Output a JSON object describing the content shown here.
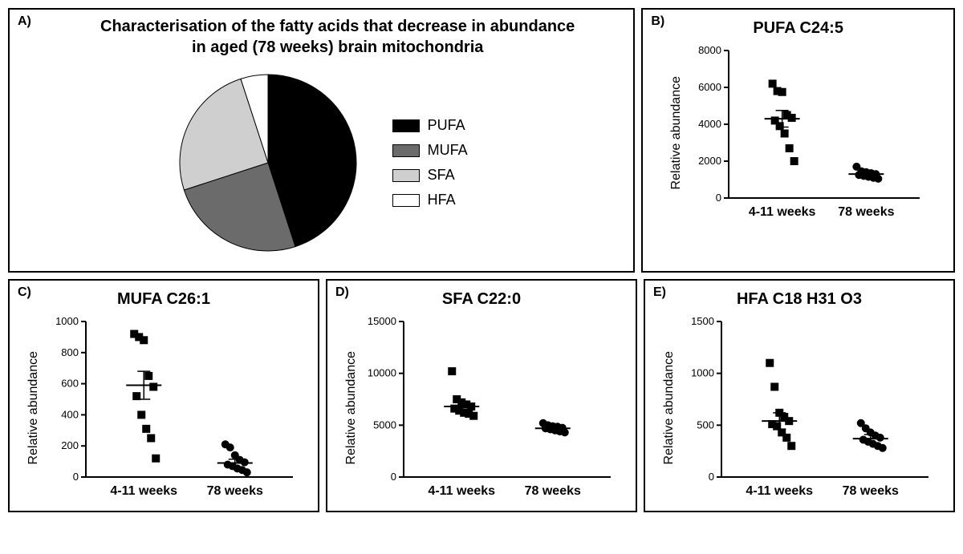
{
  "panel_a": {
    "label": "A)",
    "title_line1": "Characterisation of the fatty acids that decrease in abundance",
    "title_line2": "in aged (78 weeks) brain mitochondria",
    "pie": {
      "slices": [
        {
          "name": "PUFA",
          "value": 45,
          "color": "#000000"
        },
        {
          "name": "MUFA",
          "value": 25,
          "color": "#6b6b6b"
        },
        {
          "name": "SFA",
          "value": 25,
          "color": "#cfcfcf"
        },
        {
          "name": "HFA",
          "value": 5,
          "color": "#ffffff"
        }
      ],
      "stroke": "#000000"
    },
    "legend": [
      {
        "label": "PUFA",
        "color": "#000000"
      },
      {
        "label": "MUFA",
        "color": "#6b6b6b"
      },
      {
        "label": "SFA",
        "color": "#cfcfcf"
      },
      {
        "label": "HFA",
        "color": "#ffffff"
      }
    ]
  },
  "scatter_common": {
    "ylabel": "Relative abundance",
    "xcat_left": "4-11 weeks",
    "xcat_right": "78 weeks",
    "axis_color": "#000000",
    "tick_fontsize": 13,
    "marker_size": 5
  },
  "panel_b": {
    "label": "B)",
    "title": "PUFA C24:5",
    "ymax": 8000,
    "ytick_step": 2000,
    "group1": {
      "marker": "square",
      "mean": 4300,
      "sem": 450,
      "points": [
        6200,
        5800,
        5750,
        4500,
        4350,
        4200,
        3900,
        3500,
        2700,
        2000
      ]
    },
    "group2": {
      "marker": "circle",
      "mean": 1300,
      "sem": 120,
      "points": [
        1700,
        1450,
        1400,
        1350,
        1300,
        1250,
        1200,
        1150,
        1100,
        1050
      ]
    }
  },
  "panel_c": {
    "label": "C)",
    "title": "MUFA C26:1",
    "ymax": 1000,
    "ytick_step": 200,
    "group1": {
      "marker": "square",
      "mean": 590,
      "sem": 90,
      "points": [
        920,
        900,
        880,
        650,
        580,
        520,
        400,
        310,
        250,
        120
      ]
    },
    "group2": {
      "marker": "circle",
      "mean": 90,
      "sem": 25,
      "points": [
        210,
        190,
        140,
        110,
        95,
        80,
        70,
        55,
        45,
        30
      ]
    }
  },
  "panel_d": {
    "label": "D)",
    "title": "SFA C22:0",
    "ymax": 15000,
    "ytick_step": 5000,
    "group1": {
      "marker": "square",
      "mean": 6800,
      "sem": 400,
      "points": [
        10200,
        7500,
        7200,
        7000,
        6800,
        6600,
        6400,
        6200,
        6100,
        5900
      ]
    },
    "group2": {
      "marker": "circle",
      "mean": 4700,
      "sem": 200,
      "points": [
        5200,
        5000,
        4900,
        4850,
        4750,
        4700,
        4600,
        4500,
        4400,
        4300
      ]
    }
  },
  "panel_e": {
    "label": "E)",
    "title": "HFA C18 H31 O3",
    "ymax": 1500,
    "ytick_step": 500,
    "group1": {
      "marker": "square",
      "mean": 540,
      "sem": 80,
      "points": [
        1100,
        870,
        620,
        580,
        540,
        510,
        490,
        430,
        380,
        300
      ]
    },
    "group2": {
      "marker": "circle",
      "mean": 370,
      "sem": 40,
      "points": [
        520,
        470,
        430,
        400,
        380,
        360,
        340,
        320,
        300,
        280
      ]
    }
  }
}
